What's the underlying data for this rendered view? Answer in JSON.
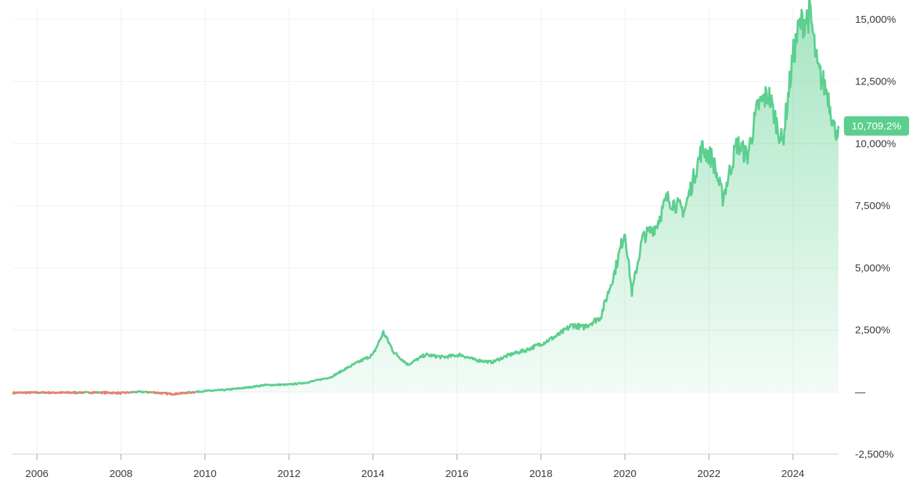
{
  "chart_data": {
    "type": "area",
    "title": "",
    "xlabel": "",
    "ylabel": "",
    "xlim": [
      "2005-06",
      "2025-02"
    ],
    "ylim": [
      -2500,
      15500
    ],
    "y_ticks": [
      {
        "value": 15000,
        "label": "15,000%"
      },
      {
        "value": 12500,
        "label": "12,500%"
      },
      {
        "value": 10000,
        "label": "10,000%"
      },
      {
        "value": 7500,
        "label": "7,500%"
      },
      {
        "value": 5000,
        "label": "5,000%"
      },
      {
        "value": 2500,
        "label": "2,500%"
      },
      {
        "value": 0,
        "label": "—"
      },
      {
        "value": -2500,
        "label": "-2,500%"
      }
    ],
    "x_ticks": [
      "2006",
      "2008",
      "2010",
      "2012",
      "2014",
      "2016",
      "2018",
      "2020",
      "2022",
      "2024"
    ],
    "grid": true,
    "colors": {
      "positive": "#5ccf8f",
      "negative": "#e8806e",
      "badge": "#5ccf8f"
    },
    "current_value_label": "10,709.2%",
    "current_value": 10709.2,
    "series": [
      {
        "x": [
          "2005-06",
          "2006-01",
          "2006-06",
          "2007-01",
          "2007-06",
          "2008-01",
          "2008-06",
          "2008-10",
          "2009-01",
          "2009-04",
          "2009-07",
          "2010-01",
          "2010-07",
          "2011-01",
          "2011-06",
          "2012-01",
          "2012-06",
          "2013-01",
          "2013-06",
          "2014-01",
          "2014-04",
          "2014-07",
          "2014-11",
          "2015-04",
          "2015-09",
          "2016-02",
          "2016-06",
          "2016-11",
          "2017-04",
          "2017-09",
          "2018-02",
          "2018-06",
          "2018-10",
          "2019-01",
          "2019-06",
          "2019-10",
          "2020-01",
          "2020-03",
          "2020-06",
          "2020-10",
          "2021-01",
          "2021-06",
          "2021-11",
          "2022-02",
          "2022-05",
          "2022-09",
          "2022-12",
          "2023-03",
          "2023-06",
          "2023-10",
          "2024-01",
          "2024-03",
          "2024-06",
          "2024-08",
          "2024-11",
          "2025-01",
          "2025-02"
        ],
        "values": [
          -30,
          -20,
          -25,
          -20,
          -15,
          -40,
          10,
          -10,
          -50,
          -80,
          -40,
          40,
          90,
          180,
          280,
          300,
          380,
          600,
          1000,
          1500,
          2400,
          1600,
          1100,
          1500,
          1400,
          1500,
          1300,
          1200,
          1500,
          1700,
          2000,
          2300,
          2700,
          2600,
          3000,
          4800,
          6500,
          4000,
          6200,
          6700,
          7800,
          7300,
          9800,
          9400,
          7800,
          10000,
          9500,
          11500,
          12000,
          10000,
          13500,
          14800,
          15200,
          13000,
          12000,
          10500,
          10709
        ]
      }
    ]
  }
}
